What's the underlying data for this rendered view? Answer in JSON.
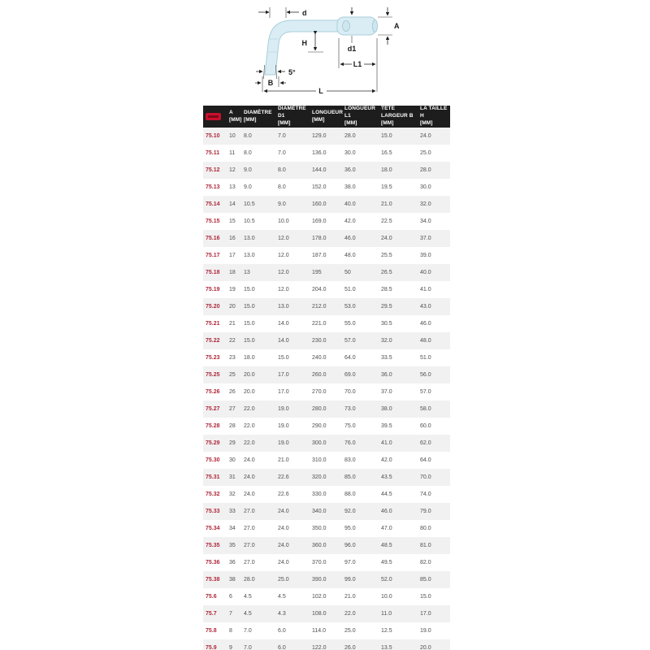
{
  "diagram": {
    "labels": {
      "d": "d",
      "A": "A",
      "H": "H",
      "d1": "d1",
      "L1": "L1",
      "angle": "5°",
      "B": "B",
      "L": "L"
    }
  },
  "table": {
    "logo_name": "brand-logo",
    "columns": [
      {
        "label": "A",
        "unit": "[MM]"
      },
      {
        "label": "DIAMÈTRE",
        "unit": "[MM]"
      },
      {
        "label": "DIAMÈTRE D1",
        "unit": "[MM]"
      },
      {
        "label": "LONGUEUR",
        "unit": "[MM]"
      },
      {
        "label": "LONGUEUR L1",
        "unit": "[MM]"
      },
      {
        "label": "TÊTE LARGEUR B",
        "unit": "[MM]"
      },
      {
        "label": "LA TAILLE H",
        "unit": "[MM]"
      }
    ],
    "rows": [
      {
        "code": "75.10",
        "values": [
          "10",
          "8.0",
          "7.0",
          "129.0",
          "28.0",
          "15.0",
          "24.0"
        ]
      },
      {
        "code": "75.11",
        "values": [
          "11",
          "8.0",
          "7.0",
          "136.0",
          "30.0",
          "16.5",
          "25.0"
        ]
      },
      {
        "code": "75.12",
        "values": [
          "12",
          "9.0",
          "8.0",
          "144.0",
          "36.0",
          "18.0",
          "28.0"
        ]
      },
      {
        "code": "75.13",
        "values": [
          "13",
          "9.0",
          "8.0",
          "152.0",
          "38.0",
          "19.5",
          "30.0"
        ]
      },
      {
        "code": "75.14",
        "values": [
          "14",
          "10.5",
          "9.0",
          "160.0",
          "40.0",
          "21.0",
          "32.0"
        ]
      },
      {
        "code": "75.15",
        "values": [
          "15",
          "10.5",
          "10.0",
          "169.0",
          "42.0",
          "22.5",
          "34.0"
        ]
      },
      {
        "code": "75.16",
        "values": [
          "16",
          "13.0",
          "12.0",
          "178.0",
          "46.0",
          "24.0",
          "37.0"
        ]
      },
      {
        "code": "75.17",
        "values": [
          "17",
          "13.0",
          "12.0",
          "187.0",
          "48.0",
          "25.5",
          "39.0"
        ]
      },
      {
        "code": "75.18",
        "values": [
          "18",
          "13",
          "12.0",
          "195",
          "50",
          "26.5",
          "40.0"
        ]
      },
      {
        "code": "75.19",
        "values": [
          "19",
          "15.0",
          "12.0",
          "204.0",
          "51.0",
          "28.5",
          "41.0"
        ]
      },
      {
        "code": "75.20",
        "values": [
          "20",
          "15.0",
          "13.0",
          "212.0",
          "53.0",
          "29.5",
          "43.0"
        ]
      },
      {
        "code": "75.21",
        "values": [
          "21",
          "15.0",
          "14.0",
          "221.0",
          "55.0",
          "30.5",
          "46.0"
        ]
      },
      {
        "code": "75.22",
        "values": [
          "22",
          "15.0",
          "14.0",
          "230.0",
          "57.0",
          "32.0",
          "48.0"
        ]
      },
      {
        "code": "75.23",
        "values": [
          "23",
          "18.0",
          "15.0",
          "240.0",
          "64.0",
          "33.5",
          "51.0"
        ]
      },
      {
        "code": "75.25",
        "values": [
          "25",
          "20.0",
          "17.0",
          "260.0",
          "69.0",
          "36.0",
          "56.0"
        ]
      },
      {
        "code": "75.26",
        "values": [
          "26",
          "20.0",
          "17.0",
          "270.0",
          "70.0",
          "37.0",
          "57.0"
        ]
      },
      {
        "code": "75.27",
        "values": [
          "27",
          "22.0",
          "19.0",
          "280.0",
          "73.0",
          "38.0",
          "58.0"
        ]
      },
      {
        "code": "75.28",
        "values": [
          "28",
          "22.0",
          "19.0",
          "290.0",
          "75.0",
          "39.5",
          "60.0"
        ]
      },
      {
        "code": "75.29",
        "values": [
          "29",
          "22.0",
          "19.0",
          "300.0",
          "76.0",
          "41.0",
          "62.0"
        ]
      },
      {
        "code": "75.30",
        "values": [
          "30",
          "24.0",
          "21.0",
          "310.0",
          "83.0",
          "42.0",
          "64.0"
        ]
      },
      {
        "code": "75.31",
        "values": [
          "31",
          "24.0",
          "22.6",
          "320.0",
          "85.0",
          "43.5",
          "70.0"
        ]
      },
      {
        "code": "75.32",
        "values": [
          "32",
          "24.0",
          "22.6",
          "330.0",
          "88.0",
          "44.5",
          "74.0"
        ]
      },
      {
        "code": "75.33",
        "values": [
          "33",
          "27.0",
          "24.0",
          "340.0",
          "92.0",
          "46.0",
          "79.0"
        ]
      },
      {
        "code": "75.34",
        "values": [
          "34",
          "27.0",
          "24.0",
          "350.0",
          "95.0",
          "47.0",
          "80.0"
        ]
      },
      {
        "code": "75.35",
        "values": [
          "35",
          "27.0",
          "24.0",
          "360.0",
          "96.0",
          "48.5",
          "81.0"
        ]
      },
      {
        "code": "75.36",
        "values": [
          "36",
          "27.0",
          "24.0",
          "370.0",
          "97.0",
          "49.5",
          "82.0"
        ]
      },
      {
        "code": "75.38",
        "values": [
          "38",
          "28.0",
          "25.0",
          "390.0",
          "99.0",
          "52.0",
          "85.0"
        ]
      },
      {
        "code": "75.6",
        "values": [
          "6",
          "4.5",
          "4.5",
          "102.0",
          "21.0",
          "10.0",
          "15.0"
        ]
      },
      {
        "code": "75.7",
        "values": [
          "7",
          "4.5",
          "4.3",
          "108.0",
          "22.0",
          "11.0",
          "17.0"
        ]
      },
      {
        "code": "75.8",
        "values": [
          "8",
          "7.0",
          "6.0",
          "114.0",
          "25.0",
          "12.5",
          "19.0"
        ]
      },
      {
        "code": "75.9",
        "values": [
          "9",
          "7.0",
          "6.0",
          "122.0",
          "26.0",
          "13.5",
          "20.0"
        ]
      }
    ]
  },
  "colors": {
    "accent_red": "#b0293a",
    "brand_red": "#c8102e",
    "header_bg": "#1d1d1d",
    "stripe": "#f1f1f2",
    "wrench_fill": "#daedf4",
    "wrench_stroke": "#a9cedb"
  }
}
